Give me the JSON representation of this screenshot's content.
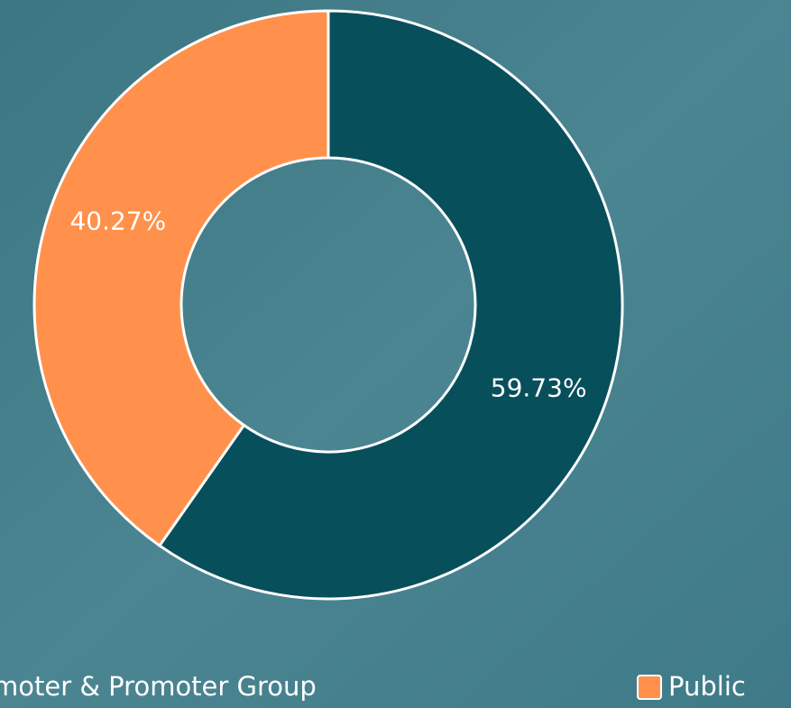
{
  "chart_data": {
    "type": "pie",
    "donut": true,
    "categories": [
      "Promoter & Promoter Group",
      "Public"
    ],
    "values": [
      59.73,
      40.27
    ],
    "value_labels": [
      "59.73%",
      "40.27%"
    ],
    "colors": [
      "#084f5c",
      "#ff914d"
    ]
  }
}
